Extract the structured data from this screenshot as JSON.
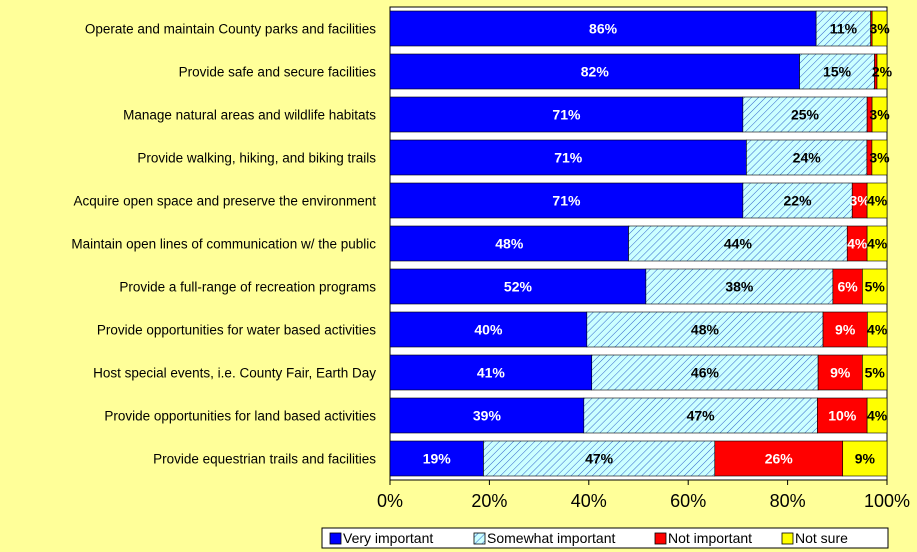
{
  "colors": {
    "background": "#ffff99",
    "plot_area": "#ffffff",
    "very_important": "#0000ff",
    "somewhat_important": "#ccffff",
    "somewhat_hatch": "#3366cc",
    "not_important": "#ff0000",
    "not_sure": "#ffff00"
  },
  "chart_data": {
    "type": "bar",
    "orientation": "horizontal",
    "stacked": "percent",
    "title": "",
    "xlabel": "",
    "ylabel": "",
    "xlim": [
      0,
      100
    ],
    "x_ticks": [
      "0%",
      "20%",
      "40%",
      "60%",
      "80%",
      "100%"
    ],
    "grid": false,
    "legend_position": "bottom",
    "categories": [
      "Operate and maintain County parks and facilities",
      "Provide safe and secure facilities",
      "Manage natural areas and wildlife habitats",
      "Provide walking, hiking, and biking trails",
      "Acquire open space and preserve the environment",
      "Maintain open lines of communication w/ the public",
      "Provide a full-range of recreation programs",
      "Provide opportunities for water based activities ",
      "Host special events, i.e. County Fair, Earth Day",
      "Provide opportunities for land based activities",
      "Provide equestrian trails and facilities"
    ],
    "series": [
      {
        "name": "Very important",
        "color": "#0000ff",
        "label_color": "#ffffff",
        "pattern": "solid",
        "values": [
          86,
          82,
          71,
          71,
          71,
          48,
          52,
          40,
          41,
          39,
          19
        ],
        "labels": [
          "86%",
          "82%",
          "71%",
          "71%",
          "71%",
          "48%",
          "52%",
          "40%",
          "41%",
          "39%",
          "19%"
        ]
      },
      {
        "name": "Somewhat important",
        "color": "#ccffff",
        "label_color": "#000000",
        "pattern": "hatch",
        "values": [
          11,
          15,
          25,
          24,
          22,
          44,
          38,
          48,
          46,
          47,
          47
        ],
        "labels": [
          "11%",
          "15%",
          "25%",
          "24%",
          "22%",
          "44%",
          "38%",
          "48%",
          "46%",
          "47%",
          "47%"
        ]
      },
      {
        "name": "Not important",
        "color": "#ff0000",
        "label_color": "#ffffff",
        "pattern": "solid",
        "values": [
          0.3,
          0.5,
          1,
          1,
          3,
          4,
          6,
          9,
          9,
          10,
          26
        ],
        "labels": [
          "",
          "",
          "",
          "",
          "3%",
          "4%",
          "6%",
          "9%",
          "9%",
          "10%",
          "26%"
        ]
      },
      {
        "name": "Not sure",
        "color": "#ffff00",
        "label_color": "#000000",
        "pattern": "solid",
        "values": [
          3,
          2,
          3,
          3,
          4,
          4,
          5,
          4,
          5,
          4,
          9
        ],
        "labels": [
          "3%",
          "2%",
          "3%",
          "3%",
          "4%",
          "4%",
          "5%",
          "4%",
          "5%",
          "4%",
          "9%"
        ]
      }
    ]
  }
}
